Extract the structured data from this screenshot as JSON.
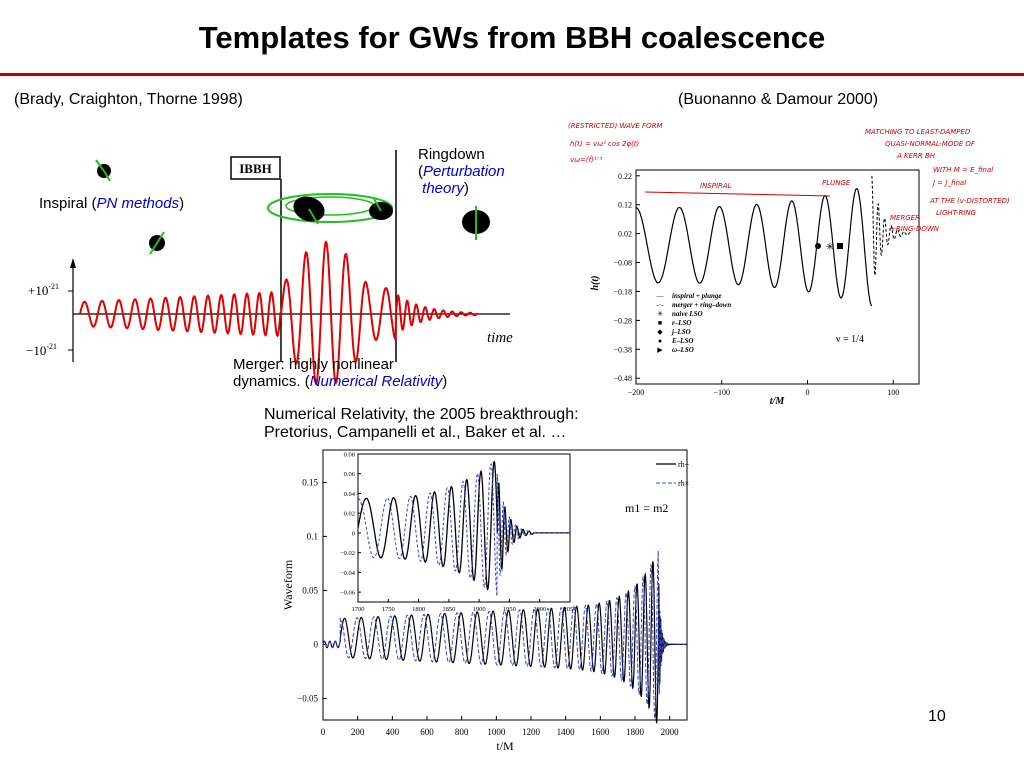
{
  "slide": {
    "title": "Templates for GWs from BBH coalescence",
    "page_number": "10",
    "colors": {
      "rule": "#c00000",
      "accent": "#0000cc",
      "waveform": "#e00000",
      "annotation": "#d00000"
    }
  },
  "left_figure": {
    "citation": "(Brady, Craighton, Thorne 1998)",
    "label_box": "IBBH",
    "inspiral_prefix": "Inspiral (",
    "inspiral_method": "PN methods",
    "inspiral_suffix": ")",
    "ringdown_line1": "Ringdown",
    "ringdown_open": "(",
    "ringdown_method1": "Perturbation",
    "ringdown_method2": "theory",
    "ringdown_close": ")",
    "merger_line1": "Merger: highly nonlinear",
    "merger_line2_prefix": "dynamics. (",
    "merger_method": "Numerical Relativity",
    "merger_suffix": ")",
    "y_tick_top": "+10",
    "y_tick_bottom": "−10",
    "y_tick_exp": "-21",
    "x_axis_label": "time"
  },
  "right_figure": {
    "citation": "(Buonanno & Damour 2000)",
    "ylabel": "h(t)",
    "xlabel": "t/M",
    "nu_label": "ν = 1/4",
    "legend": [
      "inspiral + plunge",
      "merger + ring–down",
      "naive LSO",
      "r–LSO",
      "j–LSO",
      "E–LSO",
      "ω–LSO"
    ],
    "annotations": {
      "restricted": "(RESTRICTED) WAVE FORM",
      "formula1": "h(t) = vω² cos 2φ(t)",
      "formula2": "vω=(ḟ)¹ᐟ³",
      "inspiral": "INSPIRAL",
      "plunge": "PLUNGE",
      "matching1": "MATCHING TO LEAST-DAMPED",
      "matching2": "QUASI-NORMAL-MODE OF",
      "matching3": "A KERR BH",
      "matching4": "WITH M = E_final",
      "matching5": "J = J_final",
      "lightring1": "AT THE (v-DISTORTED)",
      "lightring2": "LIGHT-RING",
      "merger1": "MERGER",
      "merger2": "+RING-DOWN"
    },
    "x_ticks": [
      "−200",
      "−100",
      "0",
      "100"
    ],
    "y_ticks": [
      "0.22",
      "0.12",
      "0.02",
      "−0.08",
      "−0.18",
      "−0.28",
      "−0.38",
      "−0.48"
    ]
  },
  "nr_section": {
    "line1": "Numerical Relativity, the 2005 breakthrough:",
    "line2": "Pretorius, Campanelli et al., Baker et al. …"
  },
  "chart_data": {
    "type": "line",
    "title": "",
    "xlabel": "t/M",
    "ylabel": "Waveform",
    "xlim": [
      0,
      2100
    ],
    "ylim": [
      -0.07,
      0.18
    ],
    "x_ticks": [
      "0",
      "200",
      "400",
      "600",
      "800",
      "1000",
      "1200",
      "1400",
      "1600",
      "1800",
      "2000"
    ],
    "y_ticks": [
      "−0.05",
      "0",
      "0.05",
      "0.1",
      "0.15"
    ],
    "annotation": "m1 = m2",
    "legend_placement": "top-right",
    "series": [
      {
        "name": "rh+",
        "style": "solid",
        "color": "#000000"
      },
      {
        "name": "rh×",
        "style": "dashed",
        "color": "#3344cc"
      }
    ],
    "inset": {
      "xlim": [
        1700,
        2050
      ],
      "ylim": [
        -0.07,
        0.08
      ],
      "x_ticks": [
        "1700",
        "1750",
        "1800",
        "1850",
        "1900",
        "1950",
        "2000",
        "2050"
      ],
      "y_ticks": [
        "0.08",
        "0.06",
        "0.04",
        "0.02",
        "0",
        "−0.02",
        "−0.04",
        "−0.06"
      ]
    }
  }
}
